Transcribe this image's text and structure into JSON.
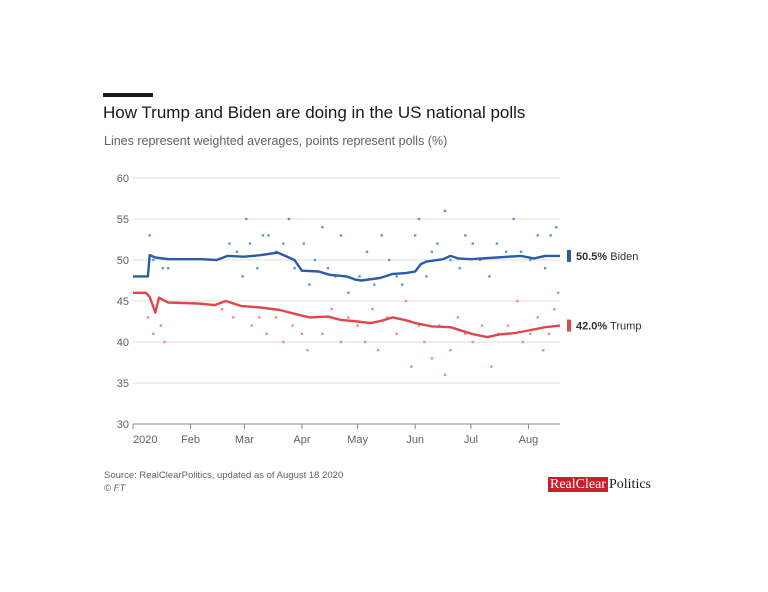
{
  "header": {
    "title": "How Trump and Biden are doing in the US national polls",
    "subtitle": "Lines represent weighted averages, points represent polls (%)"
  },
  "footer": {
    "source": "Source: RealClearPolitics, updated as of August 18 2020",
    "copyright": "© FT",
    "logo_part1": "RealClear",
    "logo_part2": "Politics"
  },
  "colors": {
    "biden": "#2a5caa",
    "biden_points": "#5b9bd5",
    "trump": "#e0474c",
    "trump_points": "#f08a8e",
    "logo_red": "#c8202a"
  },
  "chart_data": {
    "type": "line",
    "ylim": [
      30,
      60
    ],
    "yticks": [
      30,
      35,
      40,
      45,
      50,
      55,
      60
    ],
    "x_range": [
      "2020-01-01",
      "2020-08-18"
    ],
    "xticks": [
      {
        "date": "2020-01-01",
        "label": "2020"
      },
      {
        "date": "2020-02-01",
        "label": "Feb"
      },
      {
        "date": "2020-03-01",
        "label": "Mar"
      },
      {
        "date": "2020-04-01",
        "label": "Apr"
      },
      {
        "date": "2020-05-01",
        "label": "May"
      },
      {
        "date": "2020-06-01",
        "label": "Jun"
      },
      {
        "date": "2020-07-01",
        "label": "Jul"
      },
      {
        "date": "2020-08-01",
        "label": "Aug"
      }
    ],
    "grid": true,
    "series": [
      {
        "name": "Biden",
        "end_label": "50.5%",
        "average": [
          [
            "2020-01-01",
            48
          ],
          [
            "2020-01-09",
            48
          ],
          [
            "2020-01-10",
            50.6
          ],
          [
            "2020-01-13",
            50.3
          ],
          [
            "2020-01-20",
            50.1
          ],
          [
            "2020-02-07",
            50.1
          ],
          [
            "2020-02-15",
            50.0
          ],
          [
            "2020-02-21",
            50.5
          ],
          [
            "2020-03-01",
            50.4
          ],
          [
            "2020-03-10",
            50.6
          ],
          [
            "2020-03-19",
            50.9
          ],
          [
            "2020-03-28",
            50.0
          ],
          [
            "2020-04-01",
            48.7
          ],
          [
            "2020-04-10",
            48.6
          ],
          [
            "2020-04-16",
            48.2
          ],
          [
            "2020-04-25",
            48.0
          ],
          [
            "2020-04-30",
            47.6
          ],
          [
            "2020-05-03",
            47.5
          ],
          [
            "2020-05-13",
            47.8
          ],
          [
            "2020-05-20",
            48.3
          ],
          [
            "2020-05-27",
            48.4
          ],
          [
            "2020-06-01",
            48.6
          ],
          [
            "2020-06-04",
            49.5
          ],
          [
            "2020-06-07",
            49.8
          ],
          [
            "2020-06-16",
            50.1
          ],
          [
            "2020-06-20",
            50.5
          ],
          [
            "2020-06-24",
            50.2
          ],
          [
            "2020-07-01",
            50.1
          ],
          [
            "2020-07-15",
            50.3
          ],
          [
            "2020-07-28",
            50.5
          ],
          [
            "2020-08-04",
            50.2
          ],
          [
            "2020-08-10",
            50.5
          ],
          [
            "2020-08-18",
            50.5
          ]
        ],
        "polls": [
          [
            "2020-01-10",
            53
          ],
          [
            "2020-01-12",
            50
          ],
          [
            "2020-01-17",
            49
          ],
          [
            "2020-01-20",
            49
          ],
          [
            "2020-02-22",
            52
          ],
          [
            "2020-02-26",
            51
          ],
          [
            "2020-02-29",
            48
          ],
          [
            "2020-03-02",
            55
          ],
          [
            "2020-03-04",
            52
          ],
          [
            "2020-03-08",
            49
          ],
          [
            "2020-03-11",
            53
          ],
          [
            "2020-03-14",
            53
          ],
          [
            "2020-03-18",
            51
          ],
          [
            "2020-03-22",
            52
          ],
          [
            "2020-03-25",
            55
          ],
          [
            "2020-03-28",
            49
          ],
          [
            "2020-04-02",
            52
          ],
          [
            "2020-04-05",
            47
          ],
          [
            "2020-04-08",
            50
          ],
          [
            "2020-04-12",
            54
          ],
          [
            "2020-04-15",
            49
          ],
          [
            "2020-04-19",
            48
          ],
          [
            "2020-04-22",
            53
          ],
          [
            "2020-04-26",
            46
          ],
          [
            "2020-05-02",
            48
          ],
          [
            "2020-05-06",
            51
          ],
          [
            "2020-05-10",
            47
          ],
          [
            "2020-05-14",
            53
          ],
          [
            "2020-05-18",
            50
          ],
          [
            "2020-05-22",
            48
          ],
          [
            "2020-05-25",
            47
          ],
          [
            "2020-06-01",
            53
          ],
          [
            "2020-06-03",
            55
          ],
          [
            "2020-06-07",
            48
          ],
          [
            "2020-06-10",
            51
          ],
          [
            "2020-06-13",
            52
          ],
          [
            "2020-06-17",
            56
          ],
          [
            "2020-06-20",
            50
          ],
          [
            "2020-06-25",
            49
          ],
          [
            "2020-06-28",
            53
          ],
          [
            "2020-07-02",
            52
          ],
          [
            "2020-07-06",
            50
          ],
          [
            "2020-07-11",
            48
          ],
          [
            "2020-07-15",
            52
          ],
          [
            "2020-07-20",
            51
          ],
          [
            "2020-07-24",
            55
          ],
          [
            "2020-07-28",
            51
          ],
          [
            "2020-08-02",
            50
          ],
          [
            "2020-08-06",
            53
          ],
          [
            "2020-08-10",
            49
          ],
          [
            "2020-08-13",
            53
          ],
          [
            "2020-08-16",
            54
          ]
        ]
      },
      {
        "name": "Trump",
        "end_label": "42.0%",
        "average": [
          [
            "2020-01-01",
            46
          ],
          [
            "2020-01-08",
            46
          ],
          [
            "2020-01-10",
            45.5
          ],
          [
            "2020-01-13",
            43.6
          ],
          [
            "2020-01-15",
            45.4
          ],
          [
            "2020-01-20",
            44.8
          ],
          [
            "2020-02-05",
            44.7
          ],
          [
            "2020-02-14",
            44.5
          ],
          [
            "2020-02-20",
            45.0
          ],
          [
            "2020-02-28",
            44.4
          ],
          [
            "2020-03-10",
            44.2
          ],
          [
            "2020-03-20",
            43.9
          ],
          [
            "2020-03-27",
            43.5
          ],
          [
            "2020-04-05",
            43.0
          ],
          [
            "2020-04-15",
            43.1
          ],
          [
            "2020-04-22",
            42.7
          ],
          [
            "2020-05-01",
            42.5
          ],
          [
            "2020-05-08",
            42.3
          ],
          [
            "2020-05-14",
            42.6
          ],
          [
            "2020-05-20",
            43.0
          ],
          [
            "2020-05-28",
            42.6
          ],
          [
            "2020-06-01",
            42.3
          ],
          [
            "2020-06-10",
            41.9
          ],
          [
            "2020-06-20",
            41.8
          ],
          [
            "2020-06-27",
            41.3
          ],
          [
            "2020-07-03",
            40.9
          ],
          [
            "2020-07-10",
            40.6
          ],
          [
            "2020-07-16",
            40.9
          ],
          [
            "2020-07-25",
            41.1
          ],
          [
            "2020-08-01",
            41.4
          ],
          [
            "2020-08-10",
            41.8
          ],
          [
            "2020-08-18",
            42.0
          ]
        ],
        "polls": [
          [
            "2020-01-09",
            43
          ],
          [
            "2020-01-12",
            41
          ],
          [
            "2020-01-16",
            42
          ],
          [
            "2020-01-18",
            40
          ],
          [
            "2020-02-18",
            44
          ],
          [
            "2020-02-24",
            43
          ],
          [
            "2020-03-05",
            42
          ],
          [
            "2020-03-09",
            43
          ],
          [
            "2020-03-13",
            41
          ],
          [
            "2020-03-18",
            43
          ],
          [
            "2020-03-22",
            40
          ],
          [
            "2020-03-27",
            42
          ],
          [
            "2020-04-01",
            41
          ],
          [
            "2020-04-04",
            39
          ],
          [
            "2020-04-08",
            43
          ],
          [
            "2020-04-12",
            41
          ],
          [
            "2020-04-17",
            44
          ],
          [
            "2020-04-22",
            40
          ],
          [
            "2020-04-26",
            43
          ],
          [
            "2020-05-01",
            42
          ],
          [
            "2020-05-05",
            40
          ],
          [
            "2020-05-09",
            44
          ],
          [
            "2020-05-12",
            39
          ],
          [
            "2020-05-17",
            43
          ],
          [
            "2020-05-22",
            41
          ],
          [
            "2020-05-27",
            45
          ],
          [
            "2020-05-30",
            37
          ],
          [
            "2020-06-03",
            42
          ],
          [
            "2020-06-06",
            40
          ],
          [
            "2020-06-10",
            38
          ],
          [
            "2020-06-14",
            42
          ],
          [
            "2020-06-17",
            36
          ],
          [
            "2020-06-20",
            39
          ],
          [
            "2020-06-24",
            43
          ],
          [
            "2020-06-28",
            41
          ],
          [
            "2020-07-02",
            40
          ],
          [
            "2020-07-07",
            42
          ],
          [
            "2020-07-12",
            37
          ],
          [
            "2020-07-16",
            41
          ],
          [
            "2020-07-21",
            42
          ],
          [
            "2020-07-26",
            45
          ],
          [
            "2020-07-29",
            40
          ],
          [
            "2020-08-02",
            41
          ],
          [
            "2020-08-06",
            43
          ],
          [
            "2020-08-09",
            39
          ],
          [
            "2020-08-12",
            41
          ],
          [
            "2020-08-15",
            44
          ],
          [
            "2020-08-17",
            46
          ]
        ]
      }
    ]
  }
}
